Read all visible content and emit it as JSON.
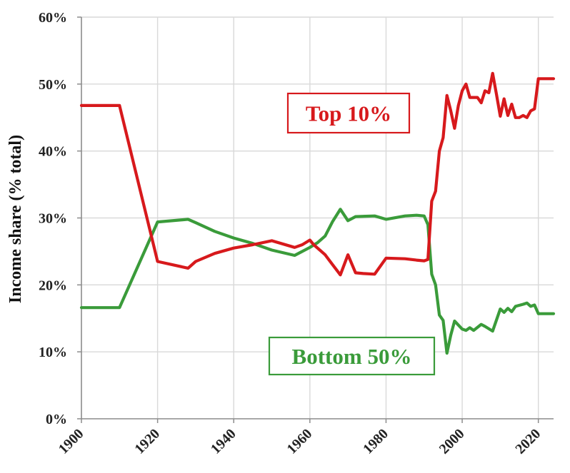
{
  "chart_data": {
    "type": "line",
    "title": "",
    "xlabel": "",
    "ylabel": "Income share (% total)",
    "xlim": [
      1900,
      2024
    ],
    "ylim": [
      0,
      60
    ],
    "x_ticks": [
      "1900",
      "1920",
      "1940",
      "1960",
      "1980",
      "2000",
      "2020"
    ],
    "y_ticks": [
      "0%",
      "10%",
      "20%",
      "30%",
      "40%",
      "50%",
      "60%"
    ],
    "grid": true,
    "series": [
      {
        "name": "Top 10%",
        "color": "#d7191c",
        "label_position": "upper-right",
        "points": [
          [
            1900,
            46.8
          ],
          [
            1910,
            46.8
          ],
          [
            1920,
            23.5
          ],
          [
            1928,
            22.5
          ],
          [
            1930,
            23.5
          ],
          [
            1935,
            24.7
          ],
          [
            1940,
            25.5
          ],
          [
            1945,
            26.0
          ],
          [
            1950,
            26.6
          ],
          [
            1956,
            25.6
          ],
          [
            1958,
            26.0
          ],
          [
            1960,
            26.7
          ],
          [
            1961,
            26.0
          ],
          [
            1964,
            24.5
          ],
          [
            1966,
            23.0
          ],
          [
            1968,
            21.5
          ],
          [
            1970,
            24.5
          ],
          [
            1972,
            21.8
          ],
          [
            1974,
            21.7
          ],
          [
            1977,
            21.6
          ],
          [
            1980,
            24.0
          ],
          [
            1985,
            23.9
          ],
          [
            1988,
            23.7
          ],
          [
            1990,
            23.6
          ],
          [
            1991,
            23.8
          ],
          [
            1992,
            32.5
          ],
          [
            1993,
            34.0
          ],
          [
            1994,
            40.0
          ],
          [
            1995,
            42.0
          ],
          [
            1996,
            48.3
          ],
          [
            1997,
            46.0
          ],
          [
            1998,
            43.4
          ],
          [
            1999,
            46.8
          ],
          [
            2000,
            49.0
          ],
          [
            2001,
            50.0
          ],
          [
            2002,
            48.0
          ],
          [
            2004,
            48.0
          ],
          [
            2005,
            47.2
          ],
          [
            2006,
            49.0
          ],
          [
            2007,
            48.7
          ],
          [
            2008,
            51.6
          ],
          [
            2009,
            48.5
          ],
          [
            2010,
            45.2
          ],
          [
            2011,
            47.8
          ],
          [
            2012,
            45.3
          ],
          [
            2013,
            47.0
          ],
          [
            2014,
            45.0
          ],
          [
            2015,
            45.0
          ],
          [
            2016,
            45.3
          ],
          [
            2017,
            45.0
          ],
          [
            2018,
            46.0
          ],
          [
            2019,
            46.3
          ],
          [
            2020,
            50.8
          ],
          [
            2024,
            50.8
          ]
        ]
      },
      {
        "name": "Bottom 50%",
        "color": "#3a9b3a",
        "label_position": "lower-right",
        "points": [
          [
            1900,
            16.6
          ],
          [
            1910,
            16.6
          ],
          [
            1920,
            29.4
          ],
          [
            1928,
            29.8
          ],
          [
            1930,
            29.3
          ],
          [
            1935,
            28.0
          ],
          [
            1940,
            27.0
          ],
          [
            1945,
            26.2
          ],
          [
            1950,
            25.2
          ],
          [
            1956,
            24.4
          ],
          [
            1958,
            25.0
          ],
          [
            1960,
            25.6
          ],
          [
            1962,
            26.3
          ],
          [
            1964,
            27.3
          ],
          [
            1966,
            29.5
          ],
          [
            1968,
            31.3
          ],
          [
            1970,
            29.6
          ],
          [
            1972,
            30.2
          ],
          [
            1977,
            30.3
          ],
          [
            1980,
            29.8
          ],
          [
            1985,
            30.3
          ],
          [
            1988,
            30.4
          ],
          [
            1990,
            30.3
          ],
          [
            1991,
            29.0
          ],
          [
            1992,
            21.6
          ],
          [
            1993,
            20.0
          ],
          [
            1994,
            15.5
          ],
          [
            1995,
            14.7
          ],
          [
            1996,
            9.8
          ],
          [
            1997,
            12.5
          ],
          [
            1998,
            14.6
          ],
          [
            2000,
            13.4
          ],
          [
            2001,
            13.2
          ],
          [
            2002,
            13.6
          ],
          [
            2003,
            13.2
          ],
          [
            2005,
            14.1
          ],
          [
            2006,
            13.8
          ],
          [
            2008,
            13.1
          ],
          [
            2010,
            16.4
          ],
          [
            2011,
            15.9
          ],
          [
            2012,
            16.5
          ],
          [
            2013,
            16.0
          ],
          [
            2014,
            16.8
          ],
          [
            2016,
            17.1
          ],
          [
            2017,
            17.3
          ],
          [
            2018,
            16.8
          ],
          [
            2019,
            17.0
          ],
          [
            2020,
            15.7
          ],
          [
            2024,
            15.7
          ]
        ]
      }
    ]
  }
}
